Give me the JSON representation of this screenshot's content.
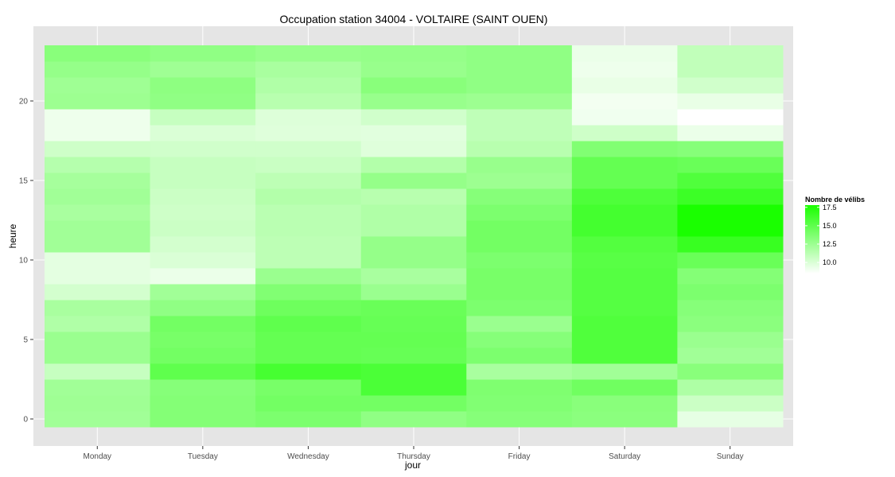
{
  "chart_data": {
    "type": "heatmap",
    "title": "Occupation station 34004 - VOLTAIRE (SAINT OUEN)",
    "xlabel": "jour",
    "ylabel": "heure",
    "x": [
      "Monday",
      "Tuesday",
      "Wednesday",
      "Thursday",
      "Friday",
      "Saturday",
      "Sunday"
    ],
    "y_ticks": [
      0,
      5,
      10,
      15,
      20
    ],
    "ylim": [
      -0.5,
      23.5
    ],
    "legend": {
      "title": "Nombre de vélibs",
      "ticks": [
        "10.0",
        "12.5",
        "15.0",
        "17.5"
      ],
      "min": 8.5,
      "max": 17.8,
      "low_color": "#ffffff",
      "high_color": "#1aff00",
      "placement": "right"
    },
    "grid": true,
    "panel_background": "#e5e5e5",
    "values": [
      [
        12.3,
        13.5,
        13.8,
        13.0,
        13.4,
        13.2,
        9.5
      ],
      [
        12.4,
        13.5,
        14.2,
        14.2,
        13.6,
        13.3,
        10.6
      ],
      [
        12.3,
        13.4,
        14.0,
        15.8,
        13.7,
        14.3,
        11.8
      ],
      [
        10.8,
        15.0,
        16.0,
        15.8,
        12.0,
        12.3,
        13.3
      ],
      [
        12.6,
        14.2,
        14.8,
        14.7,
        13.8,
        15.6,
        12.3
      ],
      [
        12.6,
        14.0,
        14.8,
        14.8,
        13.4,
        15.6,
        12.6
      ],
      [
        11.7,
        14.2,
        15.0,
        14.7,
        12.6,
        15.6,
        13.2
      ],
      [
        12.0,
        13.0,
        14.4,
        14.6,
        13.8,
        15.4,
        13.4
      ],
      [
        10.3,
        12.3,
        13.6,
        12.6,
        14.0,
        15.4,
        13.8
      ],
      [
        9.6,
        9.3,
        12.6,
        12.0,
        14.0,
        15.4,
        13.5
      ],
      [
        9.6,
        10.0,
        11.2,
        12.8,
        13.8,
        15.3,
        14.6
      ],
      [
        12.3,
        10.3,
        11.2,
        12.8,
        14.2,
        15.5,
        16.6
      ],
      [
        12.3,
        10.6,
        11.3,
        11.7,
        14.2,
        16.1,
        17.8
      ],
      [
        12.0,
        10.5,
        11.3,
        11.7,
        13.8,
        16.1,
        17.8
      ],
      [
        12.3,
        10.6,
        11.6,
        11.4,
        13.4,
        15.7,
        16.4
      ],
      [
        12.1,
        10.8,
        11.2,
        12.8,
        12.5,
        14.8,
        15.6
      ],
      [
        11.5,
        10.8,
        10.7,
        11.6,
        12.7,
        14.8,
        14.6
      ],
      [
        10.5,
        10.4,
        10.4,
        9.8,
        11.4,
        13.6,
        13.4
      ],
      [
        9.2,
        10.0,
        9.8,
        9.7,
        11.1,
        10.5,
        9.3
      ],
      [
        9.2,
        10.8,
        9.9,
        10.4,
        11.1,
        9.1,
        8.5
      ],
      [
        12.5,
        13.0,
        11.4,
        12.7,
        12.5,
        9.0,
        9.4
      ],
      [
        12.4,
        13.1,
        11.7,
        13.3,
        13.0,
        9.4,
        10.4
      ],
      [
        12.8,
        12.4,
        12.0,
        12.7,
        13.0,
        9.2,
        11.0
      ],
      [
        13.3,
        13.0,
        12.7,
        12.8,
        13.0,
        9.3,
        11.0
      ]
    ]
  }
}
